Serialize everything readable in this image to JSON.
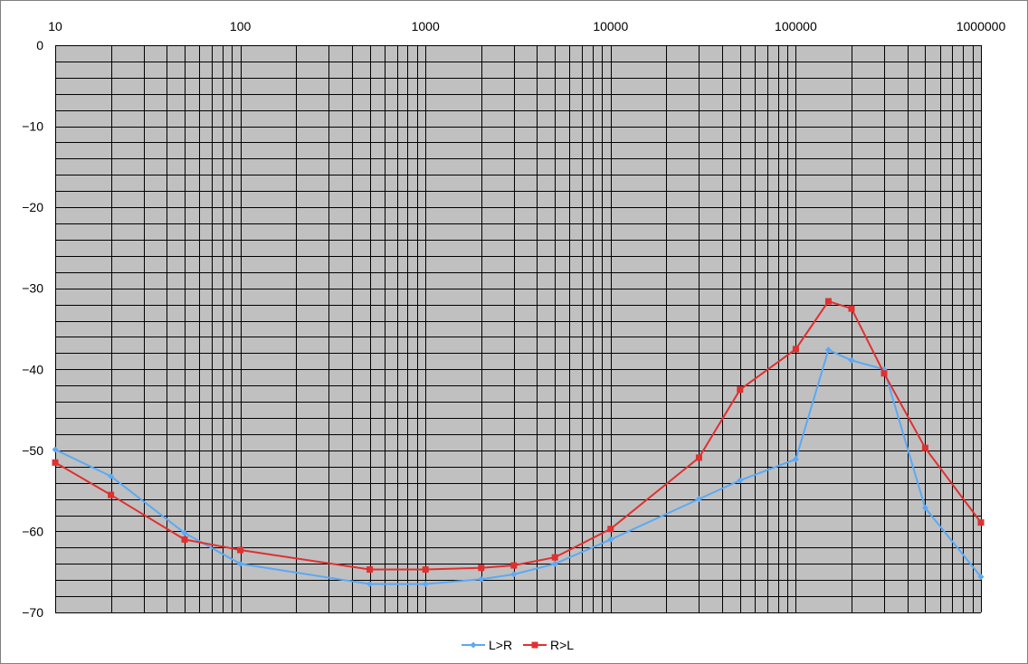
{
  "chart_data": {
    "type": "line",
    "title": "",
    "xlabel": "",
    "ylabel": "",
    "x_scale": "log",
    "xlim": [
      10,
      1000000
    ],
    "ylim": [
      -70,
      0
    ],
    "x_tick_labels": [
      "10",
      "100",
      "1000",
      "10000",
      "100000",
      "1000000"
    ],
    "y_tick_labels": [
      "0",
      "−10",
      "−20",
      "−30",
      "−40",
      "−50",
      "−60",
      "−70"
    ],
    "y_tick_values": [
      0,
      -10,
      -20,
      -30,
      -40,
      -50,
      -60,
      -70
    ],
    "x_tick_values": [
      10,
      100,
      1000,
      10000,
      100000,
      1000000
    ],
    "grid": true,
    "legend_position": "bottom",
    "plot_background": "#c0c0c0",
    "series": [
      {
        "name": "L>R",
        "color": "#5aa9f5",
        "marker": "diamond",
        "x": [
          10,
          20,
          50,
          100,
          500,
          1000,
          2000,
          3000,
          5000,
          10000,
          30000,
          50000,
          100000,
          150000,
          200000,
          300000,
          500000,
          1000000
        ],
        "values": [
          -49.9,
          -53.2,
          -60.2,
          -64,
          -66.5,
          -66.5,
          -65.9,
          -65.3,
          -64,
          -61,
          -56,
          -53.7,
          -51.1,
          -37.6,
          -38.9,
          -40,
          -57.1,
          -65.6
        ]
      },
      {
        "name": "R>L",
        "color": "#e03030",
        "marker": "square",
        "x": [
          10,
          20,
          50,
          100,
          500,
          1000,
          2000,
          3000,
          5000,
          10000,
          30000,
          50000,
          100000,
          150000,
          200000,
          300000,
          500000,
          1000000
        ],
        "values": [
          -51.5,
          -55.5,
          -61,
          -62.3,
          -64.7,
          -64.7,
          -64.5,
          -64.2,
          -63.2,
          -59.7,
          -50.9,
          -42.5,
          -37.5,
          -31.6,
          -32.5,
          -40.5,
          -49.7,
          -58.9
        ]
      }
    ]
  }
}
